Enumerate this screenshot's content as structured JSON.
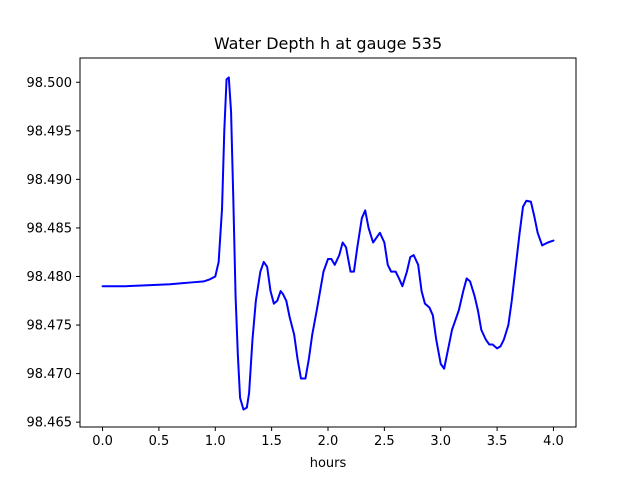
{
  "chart_data": {
    "type": "line",
    "title": "Water Depth h at gauge 535",
    "xlabel": "hours",
    "ylabel": "",
    "xlim": [
      -0.2,
      4.2
    ],
    "ylim": [
      98.4645,
      98.5025
    ],
    "xticks": [
      0.0,
      0.5,
      1.0,
      1.5,
      2.0,
      2.5,
      3.0,
      3.5,
      4.0
    ],
    "xtick_labels": [
      "0.0",
      "0.5",
      "1.0",
      "1.5",
      "2.0",
      "2.5",
      "3.0",
      "3.5",
      "4.0"
    ],
    "yticks": [
      98.465,
      98.47,
      98.475,
      98.48,
      98.485,
      98.49,
      98.495,
      98.5
    ],
    "ytick_labels": [
      "98.465",
      "98.470",
      "98.475",
      "98.480",
      "98.485",
      "98.490",
      "98.495",
      "98.500"
    ],
    "grid": false,
    "legend": "none",
    "series": [
      {
        "color": "#0000ff",
        "x": [
          0.0,
          0.2,
          0.4,
          0.6,
          0.7,
          0.8,
          0.9,
          0.95,
          1.0,
          1.03,
          1.06,
          1.08,
          1.1,
          1.12,
          1.14,
          1.16,
          1.18,
          1.2,
          1.22,
          1.25,
          1.28,
          1.3,
          1.33,
          1.36,
          1.4,
          1.43,
          1.46,
          1.49,
          1.52,
          1.55,
          1.58,
          1.6,
          1.63,
          1.66,
          1.7,
          1.73,
          1.76,
          1.8,
          1.83,
          1.86,
          1.9,
          1.93,
          1.96,
          2.0,
          2.03,
          2.06,
          2.1,
          2.13,
          2.16,
          2.2,
          2.23,
          2.26,
          2.3,
          2.33,
          2.36,
          2.4,
          2.43,
          2.46,
          2.5,
          2.53,
          2.56,
          2.6,
          2.63,
          2.66,
          2.7,
          2.73,
          2.76,
          2.8,
          2.83,
          2.86,
          2.9,
          2.93,
          2.96,
          3.0,
          3.03,
          3.06,
          3.1,
          3.13,
          3.16,
          3.2,
          3.23,
          3.26,
          3.3,
          3.33,
          3.36,
          3.4,
          3.43,
          3.46,
          3.5,
          3.53,
          3.56,
          3.6,
          3.63,
          3.66,
          3.7,
          3.73,
          3.76,
          3.8,
          3.83,
          3.86,
          3.9,
          3.95,
          4.0
        ],
        "y": [
          98.479,
          98.479,
          98.4791,
          98.4792,
          98.4793,
          98.4794,
          98.4795,
          98.4797,
          98.48,
          98.4815,
          98.487,
          98.495,
          98.5003,
          98.5005,
          98.497,
          98.488,
          98.478,
          98.472,
          98.4675,
          98.4663,
          98.4665,
          98.468,
          98.4735,
          98.4775,
          98.4805,
          98.4815,
          98.481,
          98.4785,
          98.4772,
          98.4775,
          98.4785,
          98.4782,
          98.4775,
          98.4758,
          98.474,
          98.4715,
          98.4695,
          98.4695,
          98.4715,
          98.474,
          98.4765,
          98.4785,
          98.4805,
          98.4818,
          98.4818,
          98.4812,
          98.4822,
          98.4835,
          98.483,
          98.4805,
          98.4805,
          98.483,
          98.486,
          98.4868,
          98.485,
          98.4835,
          98.484,
          98.4845,
          98.4835,
          98.4812,
          98.4805,
          98.4805,
          98.4798,
          98.479,
          98.4805,
          98.482,
          98.4822,
          98.4812,
          98.4785,
          98.4772,
          98.4768,
          98.476,
          98.4735,
          98.471,
          98.4705,
          98.4722,
          98.4745,
          98.4755,
          98.4765,
          98.4785,
          98.4798,
          98.4795,
          98.478,
          98.4765,
          98.4745,
          98.4735,
          98.473,
          98.473,
          98.4726,
          98.4728,
          98.4735,
          98.475,
          98.4775,
          98.4805,
          98.4845,
          98.4872,
          98.4878,
          98.4877,
          98.4862,
          98.4845,
          98.4832,
          98.4835,
          98.4837
        ]
      }
    ]
  }
}
